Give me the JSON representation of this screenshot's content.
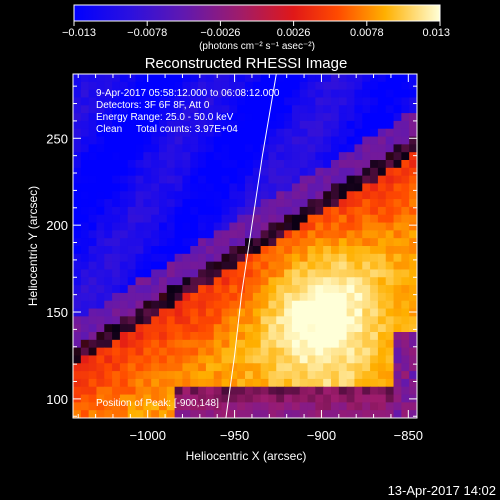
{
  "chart_data": {
    "type": "heatmap",
    "title": "Reconstructed RHESSI Image",
    "xlabel": "Heliocentric X (arcsec)",
    "ylabel": "Heliocentric Y (arcsec)",
    "xlim": [
      -1043,
      -845
    ],
    "ylim": [
      89,
      287
    ],
    "x_ticks": [
      -1000,
      -950,
      -900,
      -850
    ],
    "x_tick_labels": [
      "−1000",
      "−950",
      "−900",
      "−850"
    ],
    "y_ticks": [
      100,
      150,
      200,
      250
    ],
    "y_tick_labels": [
      "100",
      "150",
      "200",
      "250"
    ],
    "colorbar": {
      "vmin": -0.013,
      "vmax": 0.013,
      "tick_values": [
        -0.013,
        -0.0078,
        -0.0026,
        0.0026,
        0.0078,
        0.013
      ],
      "tick_labels": [
        "−0.013",
        "−0.0078",
        "−0.0026",
        "0.0026",
        "0.0078",
        "0.013"
      ],
      "unit_label": "(photons cm⁻² s⁻¹ asec⁻²)"
    },
    "annotations": [
      "9-Apr-2017 05:58:12.000 to 06:08:12.000",
      "Detectors: 3F 6F 8F, Att 0",
      "Energy Range: 25.0 - 50.0 keV",
      "Clean     Total counts: 3.97E+04",
      "Position of Peak: [-900,148]"
    ],
    "peak": {
      "x": -900,
      "y": 148
    },
    "limb_curve_x_at_y": [
      [
        -955,
        89
      ],
      [
        -950,
        125
      ],
      [
        -946,
        160
      ],
      [
        -940,
        200
      ],
      [
        -934,
        240
      ],
      [
        -926,
        287
      ]
    ]
  },
  "footer": {
    "timestamp": "13-Apr-2017 14:02"
  }
}
